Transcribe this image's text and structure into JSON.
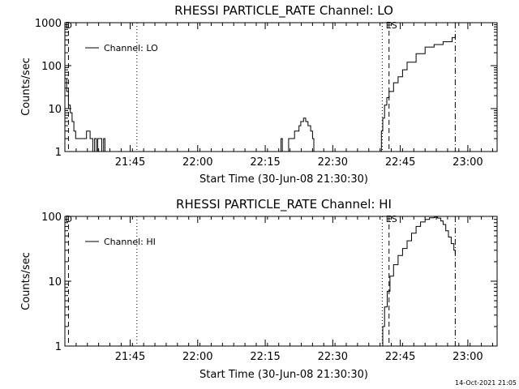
{
  "footer": {
    "timestamp": "14-Oct-2021 21:05"
  },
  "chart_data": [
    {
      "type": "line",
      "title": "RHESSI PARTICLE_RATE Channel: LO",
      "xlabel": "Start Time (30-Jun-08 21:30:30)",
      "ylabel": "Counts/sec",
      "x_unit": "minutes after 21:30:30",
      "xlim": [
        0,
        96
      ],
      "ylim": [
        1,
        1000
      ],
      "yscale": "log",
      "grid": false,
      "legend_position": "top-left",
      "x_ticks": [
        {
          "x": 14.5,
          "label": "21:45"
        },
        {
          "x": 29.5,
          "label": "22:00"
        },
        {
          "x": 44.5,
          "label": "22:15"
        },
        {
          "x": 59.5,
          "label": "22:30"
        },
        {
          "x": 74.5,
          "label": "22:45"
        },
        {
          "x": 89.5,
          "label": "23:00"
        }
      ],
      "y_ticks": [
        {
          "y": 1,
          "label": "1"
        },
        {
          "y": 10,
          "label": "10"
        },
        {
          "y": 100,
          "label": "100"
        },
        {
          "y": 1000,
          "label": "1000"
        }
      ],
      "vlines": [
        {
          "x": 0.8,
          "style": "dashed",
          "label": "D"
        },
        {
          "x": 16.0,
          "style": "dotted",
          "label": ""
        },
        {
          "x": 70.5,
          "style": "dotted",
          "label": ""
        },
        {
          "x": 72.0,
          "style": "dashed",
          "label": "ES"
        },
        {
          "x": 86.7,
          "style": "dashdot",
          "label": ""
        }
      ],
      "series": [
        {
          "name": "Channel: LO",
          "x": [
            0,
            0.4,
            0.8,
            1.2,
            1.6,
            2.0,
            2.4,
            4.5,
            4.8,
            5.2,
            5.6,
            6.0,
            6.2,
            6.6,
            7.0,
            7.3,
            7.7,
            8.2,
            8.6,
            8.9
          ],
          "y": [
            50,
            25,
            12,
            8,
            5,
            3,
            2,
            2,
            3,
            3,
            2,
            2,
            1,
            2,
            1,
            2,
            2,
            1,
            2,
            1
          ]
        },
        {
          "name": "",
          "x": [
            47.8,
            48.0,
            48.3
          ],
          "y": [
            1,
            2,
            1
          ]
        },
        {
          "name": "",
          "x": [
            49.5,
            49.7,
            50.3,
            51.0,
            51.6,
            52.0,
            52.4,
            53.0,
            53.5,
            54.0,
            54.6,
            55.0,
            55.3,
            55.6
          ],
          "y": [
            1,
            2,
            2,
            3,
            3,
            4,
            5,
            6,
            5,
            4,
            3,
            2,
            1,
            1
          ]
        },
        {
          "name": "",
          "x": [
            70.0,
            70.3,
            70.6,
            71.0,
            71.5,
            72.0,
            73.0,
            74.0,
            75.0,
            76.0,
            78.0,
            80.0,
            82.0,
            84.0,
            86.0,
            86.7
          ],
          "y": [
            1,
            3,
            6,
            12,
            18,
            25,
            40,
            55,
            80,
            120,
            190,
            270,
            310,
            360,
            450,
            520
          ]
        }
      ]
    },
    {
      "type": "line",
      "title": "RHESSI PARTICLE_RATE Channel: HI",
      "xlabel": "Start Time (30-Jun-08 21:30:30)",
      "ylabel": "Counts/sec",
      "x_unit": "minutes after 21:30:30",
      "xlim": [
        0,
        96
      ],
      "ylim": [
        1,
        100
      ],
      "yscale": "log",
      "grid": false,
      "legend_position": "top-left",
      "x_ticks": [
        {
          "x": 14.5,
          "label": "21:45"
        },
        {
          "x": 29.5,
          "label": "22:00"
        },
        {
          "x": 44.5,
          "label": "22:15"
        },
        {
          "x": 59.5,
          "label": "22:30"
        },
        {
          "x": 74.5,
          "label": "22:45"
        },
        {
          "x": 89.5,
          "label": "23:00"
        }
      ],
      "y_ticks": [
        {
          "y": 1,
          "label": "1"
        },
        {
          "y": 10,
          "label": "10"
        },
        {
          "y": 100,
          "label": "100"
        }
      ],
      "vlines": [
        {
          "x": 0.8,
          "style": "dashed",
          "label": "D"
        },
        {
          "x": 16.0,
          "style": "dotted",
          "label": ""
        },
        {
          "x": 70.5,
          "style": "dotted",
          "label": ""
        },
        {
          "x": 72.0,
          "style": "dashed",
          "label": "ES"
        },
        {
          "x": 86.7,
          "style": "dashdot",
          "label": ""
        }
      ],
      "series": [
        {
          "name": "Channel: HI",
          "x": [
            70.2,
            70.6,
            71.0,
            71.6,
            72.2,
            73.0,
            74.0,
            75.0,
            76.0,
            77.0,
            78.0,
            79.0,
            80.0,
            81.0,
            82.0,
            82.8,
            83.5,
            84.0,
            84.6,
            85.2,
            85.8,
            86.4,
            86.7
          ],
          "y": [
            1,
            2,
            4,
            7,
            12,
            18,
            25,
            32,
            42,
            55,
            70,
            82,
            90,
            95,
            97,
            94,
            85,
            75,
            60,
            48,
            38,
            30,
            26
          ]
        }
      ]
    }
  ]
}
